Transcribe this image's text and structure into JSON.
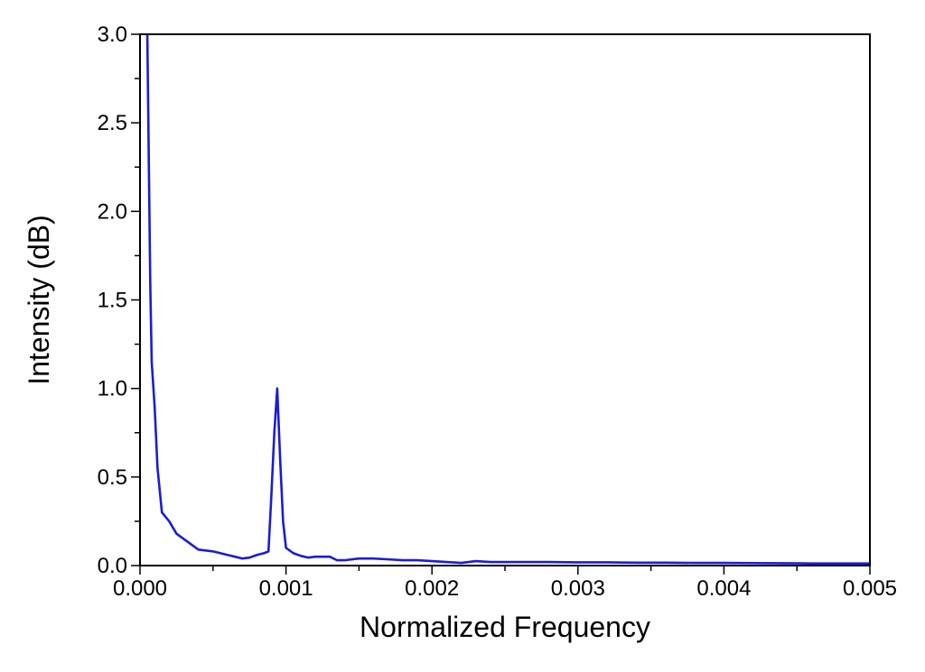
{
  "chart_data": {
    "type": "line",
    "title": "",
    "xlabel": "Normalized Frequency",
    "ylabel": "Intensity (dB)",
    "xlim": [
      0.0,
      0.005
    ],
    "ylim": [
      0.0,
      3.0
    ],
    "x_ticks": [
      "0.000",
      "0.001",
      "0.002",
      "0.003",
      "0.004",
      "0.005"
    ],
    "y_ticks": [
      "0.0",
      "0.5",
      "1.0",
      "1.5",
      "2.0",
      "2.5",
      "3.0"
    ],
    "grid": false,
    "legend": "none",
    "series_color": "#1c1cd6",
    "series": [
      {
        "x": [
          5e-05,
          6e-05,
          7e-05,
          8e-05,
          0.0001,
          0.00012,
          0.00015,
          0.0002,
          0.00025,
          0.0003,
          0.00035,
          0.0004,
          0.00045,
          0.0005,
          0.00055,
          0.0006,
          0.00065,
          0.0007,
          0.00075,
          0.0008,
          0.00085,
          0.00088,
          0.0009,
          0.00092,
          0.00094,
          0.00096,
          0.00098,
          0.001,
          0.00105,
          0.0011,
          0.00115,
          0.0012,
          0.00125,
          0.0013,
          0.00135,
          0.0014,
          0.0015,
          0.0016,
          0.0017,
          0.0018,
          0.0019,
          0.002,
          0.0021,
          0.0022,
          0.0023,
          0.0024,
          0.0025,
          0.0026,
          0.0027,
          0.0028,
          0.003,
          0.0032,
          0.0034,
          0.0036,
          0.0038,
          0.004,
          0.0042,
          0.0044,
          0.0046,
          0.0048,
          0.005
        ],
        "y": [
          3.0,
          2.3,
          1.6,
          1.15,
          0.9,
          0.55,
          0.3,
          0.25,
          0.18,
          0.15,
          0.12,
          0.09,
          0.085,
          0.08,
          0.07,
          0.06,
          0.05,
          0.04,
          0.045,
          0.06,
          0.07,
          0.08,
          0.4,
          0.75,
          1.0,
          0.6,
          0.25,
          0.1,
          0.07,
          0.055,
          0.045,
          0.05,
          0.05,
          0.05,
          0.03,
          0.03,
          0.04,
          0.04,
          0.035,
          0.03,
          0.03,
          0.025,
          0.02,
          0.015,
          0.025,
          0.02,
          0.02,
          0.02,
          0.02,
          0.02,
          0.018,
          0.018,
          0.016,
          0.016,
          0.015,
          0.015,
          0.014,
          0.013,
          0.012,
          0.012,
          0.012
        ]
      }
    ]
  }
}
